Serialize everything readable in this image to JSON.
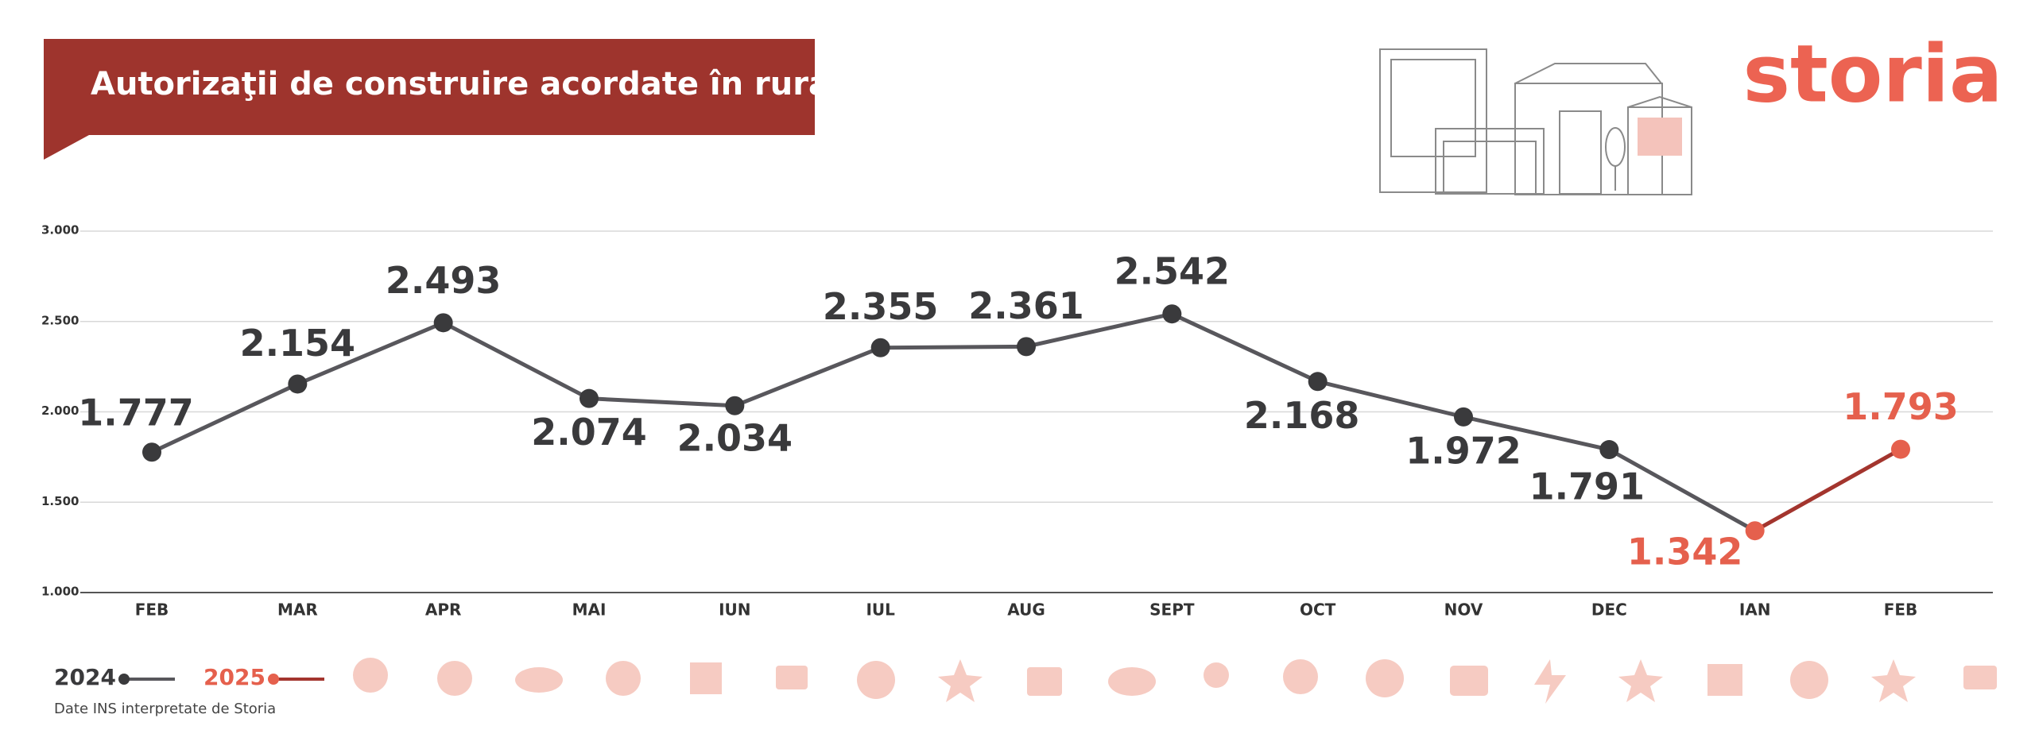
{
  "chart_data": {
    "type": "line",
    "title": "Autorizaţii de construire acordate în rural",
    "brand": "storia",
    "note": "Date INS interpretate de Storia",
    "categories": [
      "FEB",
      "MAR",
      "APR",
      "MAI",
      "IUN",
      "IUL",
      "AUG",
      "SEPT",
      "OCT",
      "NOV",
      "DEC",
      "IAN",
      "FEB"
    ],
    "series": [
      {
        "name": "2024",
        "color": "#58575c",
        "values": [
          1777,
          2154,
          2493,
          2074,
          2034,
          2355,
          2361,
          2542,
          2168,
          1972,
          1791,
          null,
          null
        ],
        "value_labels": [
          "1.777",
          "2.154",
          "2.493",
          "2.074",
          "2.034",
          "2.355",
          "2.361",
          "2.542",
          "2.168",
          "1.972",
          "1.791",
          null,
          null
        ]
      },
      {
        "name": "2025",
        "color": "#e5604d",
        "values": [
          null,
          null,
          null,
          null,
          null,
          null,
          null,
          null,
          null,
          null,
          null,
          1342,
          1793
        ],
        "value_labels": [
          null,
          null,
          null,
          null,
          null,
          null,
          null,
          null,
          null,
          null,
          null,
          "1.342",
          "1.793"
        ]
      }
    ],
    "ylim": [
      1000,
      3000
    ],
    "yticks": [
      {
        "value": 1000,
        "label": "1.000"
      },
      {
        "value": 1500,
        "label": "1.500"
      },
      {
        "value": 2000,
        "label": "2.000"
      },
      {
        "value": 2500,
        "label": "2.500"
      },
      {
        "value": 3000,
        "label": "3.000"
      }
    ],
    "grid": true
  }
}
